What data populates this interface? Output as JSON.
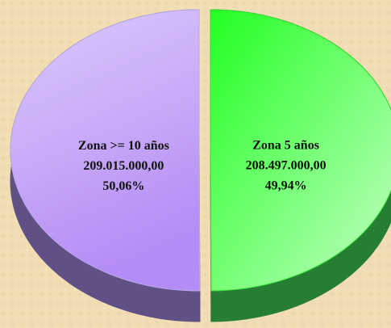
{
  "chart_data": {
    "type": "pie",
    "categories": [
      "Zona >= 10 años",
      "Zona 5 años"
    ],
    "values": [
      209015000,
      208497000
    ],
    "value_labels": [
      "209.015.000,00",
      "208.497.000,00"
    ],
    "percent": [
      50.06,
      49.94
    ],
    "percent_labels": [
      "50,06%",
      "49,94%"
    ],
    "colors": [
      "#b48cf5",
      "#22ff22"
    ]
  }
}
